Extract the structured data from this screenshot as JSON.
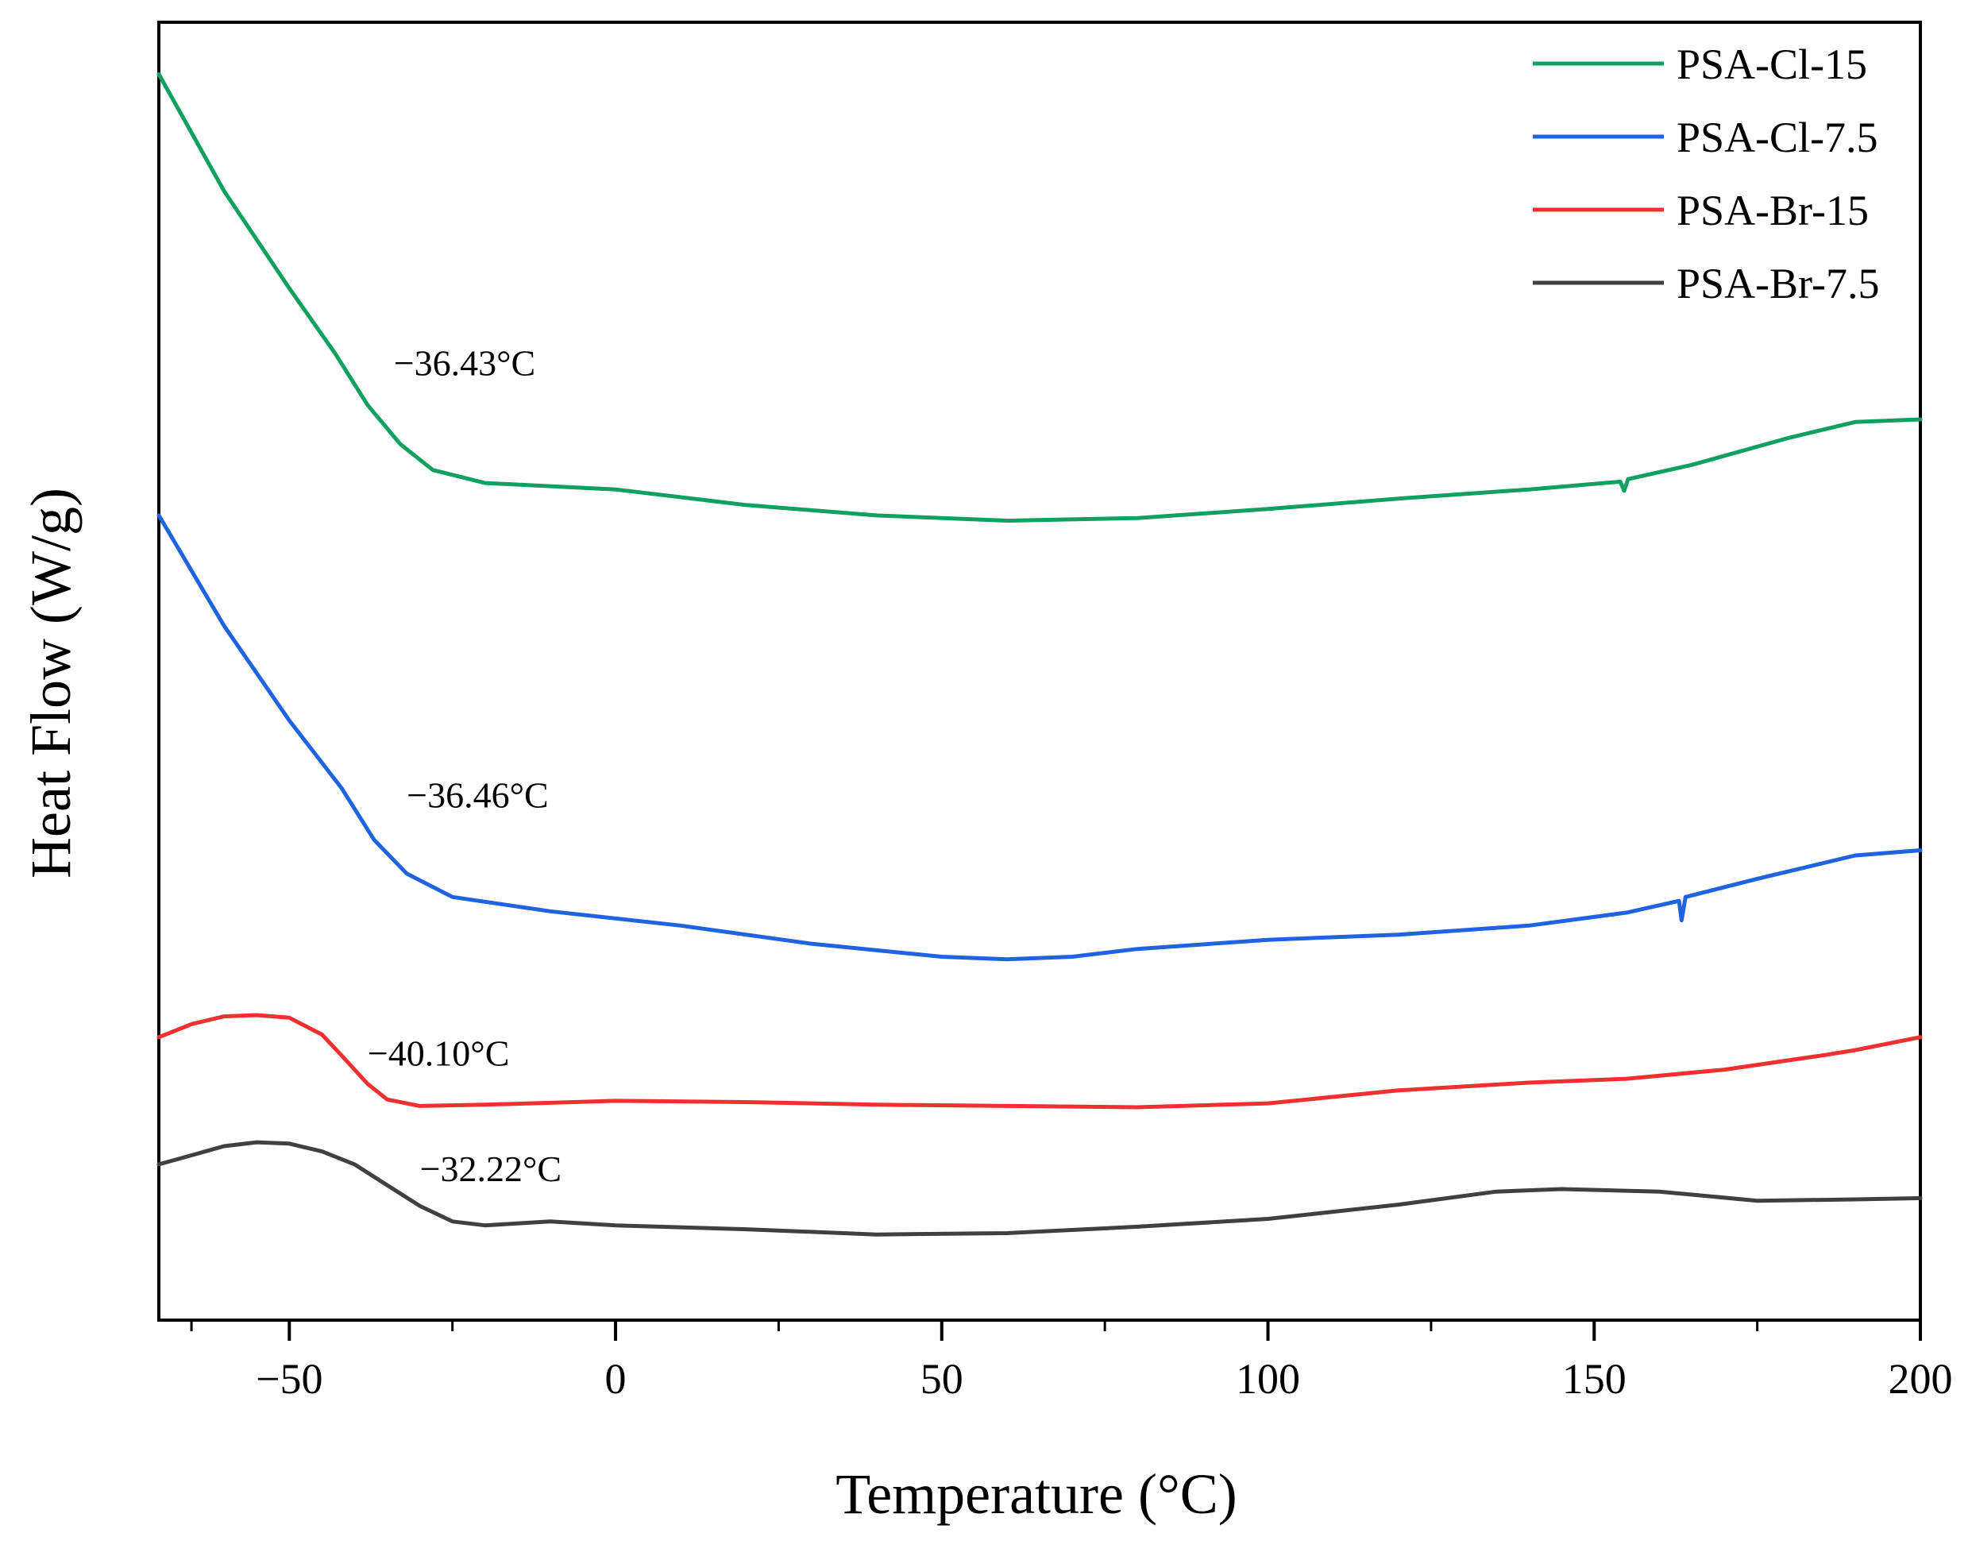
{
  "chart_data": {
    "type": "line",
    "title": "",
    "xlabel": "Temperature (°C)",
    "ylabel": "Heat Flow (W/g)",
    "xlim": [
      -70,
      200
    ],
    "ylim": [
      0,
      100
    ],
    "x_ticks": [
      -50,
      0,
      50,
      100,
      150,
      200
    ],
    "x_tick_labels": [
      "−50",
      "0",
      "50",
      "100",
      "150",
      "200"
    ],
    "y_tick_labels_shown": false,
    "grid": false,
    "legend_position": "top-right",
    "series": [
      {
        "name": "PSA-Cl-15",
        "color": "#10a060",
        "points": [
          [
            -70,
            96.0
          ],
          [
            -60,
            87.0
          ],
          [
            -50,
            79.5
          ],
          [
            -43,
            74.5
          ],
          [
            -38,
            70.5
          ],
          [
            -33,
            67.5
          ],
          [
            -28,
            65.5
          ],
          [
            -20,
            64.5
          ],
          [
            0,
            64.0
          ],
          [
            20,
            62.8
          ],
          [
            40,
            62.0
          ],
          [
            60,
            61.6
          ],
          [
            80,
            61.8
          ],
          [
            100,
            62.5
          ],
          [
            120,
            63.3
          ],
          [
            140,
            64.0
          ],
          [
            154,
            64.6
          ],
          [
            154.6,
            63.9
          ],
          [
            155.2,
            64.8
          ],
          [
            165,
            65.9
          ],
          [
            180,
            68.0
          ],
          [
            190,
            69.2
          ],
          [
            200,
            69.4
          ]
        ]
      },
      {
        "name": "PSA-Cl-7.5",
        "color": "#1f63e0",
        "points": [
          [
            -70,
            62.0
          ],
          [
            -60,
            53.5
          ],
          [
            -50,
            46.2
          ],
          [
            -42,
            41.0
          ],
          [
            -37,
            37.0
          ],
          [
            -32,
            34.4
          ],
          [
            -25,
            32.6
          ],
          [
            -10,
            31.5
          ],
          [
            10,
            30.4
          ],
          [
            30,
            29.0
          ],
          [
            50,
            28.0
          ],
          [
            60,
            27.8
          ],
          [
            70,
            28.0
          ],
          [
            80,
            28.6
          ],
          [
            100,
            29.3
          ],
          [
            120,
            29.7
          ],
          [
            140,
            30.4
          ],
          [
            155,
            31.4
          ],
          [
            163,
            32.3
          ],
          [
            163.4,
            30.8
          ],
          [
            164,
            32.6
          ],
          [
            175,
            34.0
          ],
          [
            190,
            35.8
          ],
          [
            200,
            36.2
          ]
        ]
      },
      {
        "name": "PSA-Br-15",
        "color": "#f03030",
        "points": [
          [
            -70,
            21.8
          ],
          [
            -65,
            22.8
          ],
          [
            -60,
            23.4
          ],
          [
            -55,
            23.5
          ],
          [
            -50,
            23.3
          ],
          [
            -45,
            22.0
          ],
          [
            -42,
            20.4
          ],
          [
            -38,
            18.2
          ],
          [
            -35,
            17.0
          ],
          [
            -30,
            16.5
          ],
          [
            -20,
            16.6
          ],
          [
            0,
            16.9
          ],
          [
            20,
            16.8
          ],
          [
            40,
            16.6
          ],
          [
            60,
            16.5
          ],
          [
            80,
            16.4
          ],
          [
            100,
            16.7
          ],
          [
            120,
            17.7
          ],
          [
            140,
            18.3
          ],
          [
            155,
            18.6
          ],
          [
            170,
            19.3
          ],
          [
            185,
            20.4
          ],
          [
            190,
            20.8
          ],
          [
            200,
            21.8
          ]
        ]
      },
      {
        "name": "PSA-Br-7.5",
        "color": "#404040",
        "points": [
          [
            -70,
            12.0
          ],
          [
            -65,
            12.7
          ],
          [
            -60,
            13.4
          ],
          [
            -55,
            13.7
          ],
          [
            -50,
            13.6
          ],
          [
            -45,
            13.0
          ],
          [
            -40,
            12.0
          ],
          [
            -35,
            10.4
          ],
          [
            -30,
            8.8
          ],
          [
            -25,
            7.6
          ],
          [
            -20,
            7.3
          ],
          [
            -10,
            7.6
          ],
          [
            0,
            7.3
          ],
          [
            20,
            7.0
          ],
          [
            40,
            6.6
          ],
          [
            60,
            6.7
          ],
          [
            80,
            7.2
          ],
          [
            100,
            7.8
          ],
          [
            120,
            8.9
          ],
          [
            135,
            9.9
          ],
          [
            145,
            10.1
          ],
          [
            160,
            9.9
          ],
          [
            175,
            9.2
          ],
          [
            190,
            9.3
          ],
          [
            200,
            9.4
          ]
        ]
      }
    ],
    "annotations": [
      {
        "text": "−36.43°C",
        "x": -34,
        "y": 72.8
      },
      {
        "text": "−36.46°C",
        "x": -32,
        "y": 39.5
      },
      {
        "text": "−40.10°C",
        "x": -38,
        "y": 19.6
      },
      {
        "text": "−32.22°C",
        "x": -30,
        "y": 10.7
      }
    ]
  }
}
